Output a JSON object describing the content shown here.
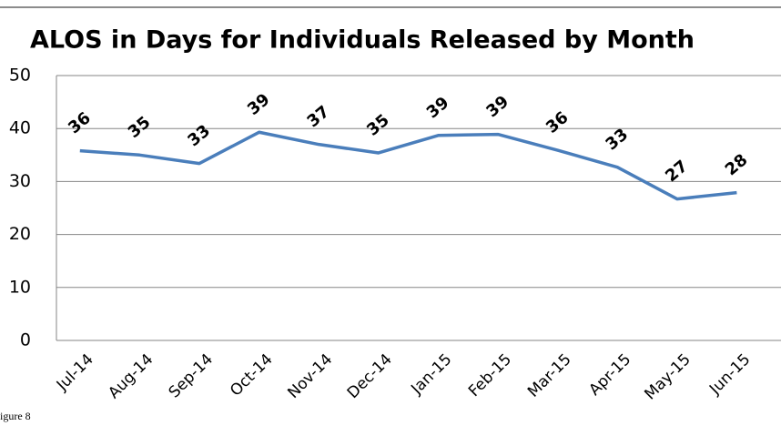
{
  "chart_data": {
    "type": "line",
    "title": "ALOS in Days for Individuals Released by Month",
    "categories": [
      "Jul-14",
      "Aug-14",
      "Sep-14",
      "Oct-14",
      "Nov-14",
      "Dec-14",
      "Jan-15",
      "Feb-15",
      "Mar-15",
      "Apr-15",
      "May-15",
      "Jun-15"
    ],
    "series": [
      {
        "name": "ALOS",
        "color": "#4a7ebb",
        "values": [
          35.8,
          35,
          33.4,
          39.3,
          37,
          35.4,
          38.7,
          38.9,
          35.9,
          32.7,
          26.7,
          27.9
        ],
        "value_labels": [
          "36",
          "35",
          "33",
          "39",
          "37",
          "35",
          "39",
          "39",
          "36",
          "33",
          "27",
          "28"
        ]
      }
    ],
    "ylim": [
      0,
      50
    ],
    "yticks": [
      0,
      10,
      20,
      30,
      40,
      50
    ],
    "grid": true
  },
  "caption": "igure 8"
}
